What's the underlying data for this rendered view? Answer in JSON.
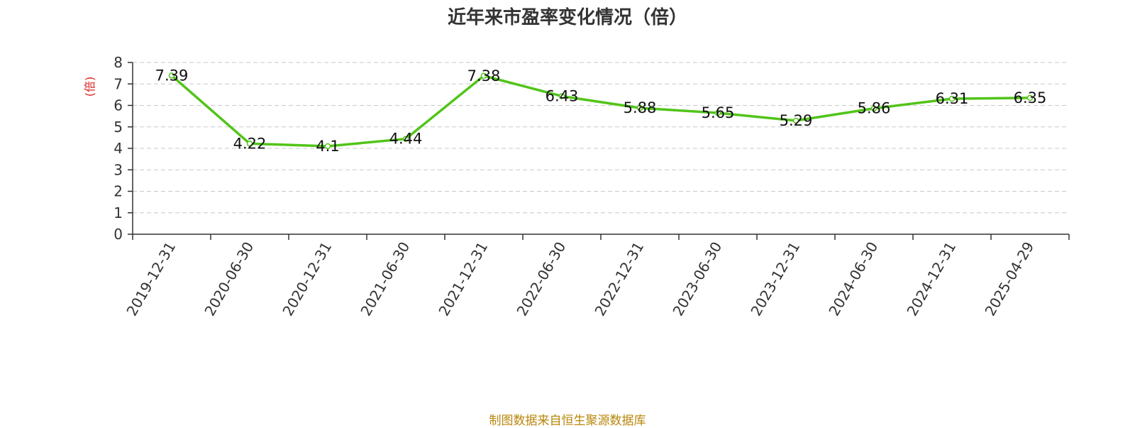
{
  "chart_data": {
    "type": "line",
    "title": "近年来市盈率变化情况（倍）",
    "ylabel": "(倍)",
    "xlabel": "",
    "ylim": [
      0,
      8
    ],
    "yticks": [
      0,
      1,
      2,
      3,
      4,
      5,
      6,
      7,
      8
    ],
    "grid": true,
    "categories": [
      "2019-12-31",
      "2020-06-30",
      "2020-12-31",
      "2021-06-30",
      "2021-12-31",
      "2022-06-30",
      "2022-12-31",
      "2023-06-30",
      "2023-12-31",
      "2024-06-30",
      "2024-12-31",
      "2025-04-29"
    ],
    "series": [
      {
        "values": [
          7.39,
          4.22,
          4.1,
          4.44,
          7.38,
          6.43,
          5.88,
          5.65,
          5.29,
          5.86,
          6.31,
          6.35
        ],
        "labels": [
          "7.39",
          "4.22",
          "4.1",
          "4.44",
          "7.38",
          "6.43",
          "5.88",
          "5.65",
          "5.29",
          "5.86",
          "6.31",
          "6.35"
        ]
      }
    ]
  },
  "colors": {
    "line": "#52c41a",
    "ylabel": "#e02020",
    "source": "#b8860b"
  },
  "source_note": "制图数据来自恒生聚源数据库"
}
